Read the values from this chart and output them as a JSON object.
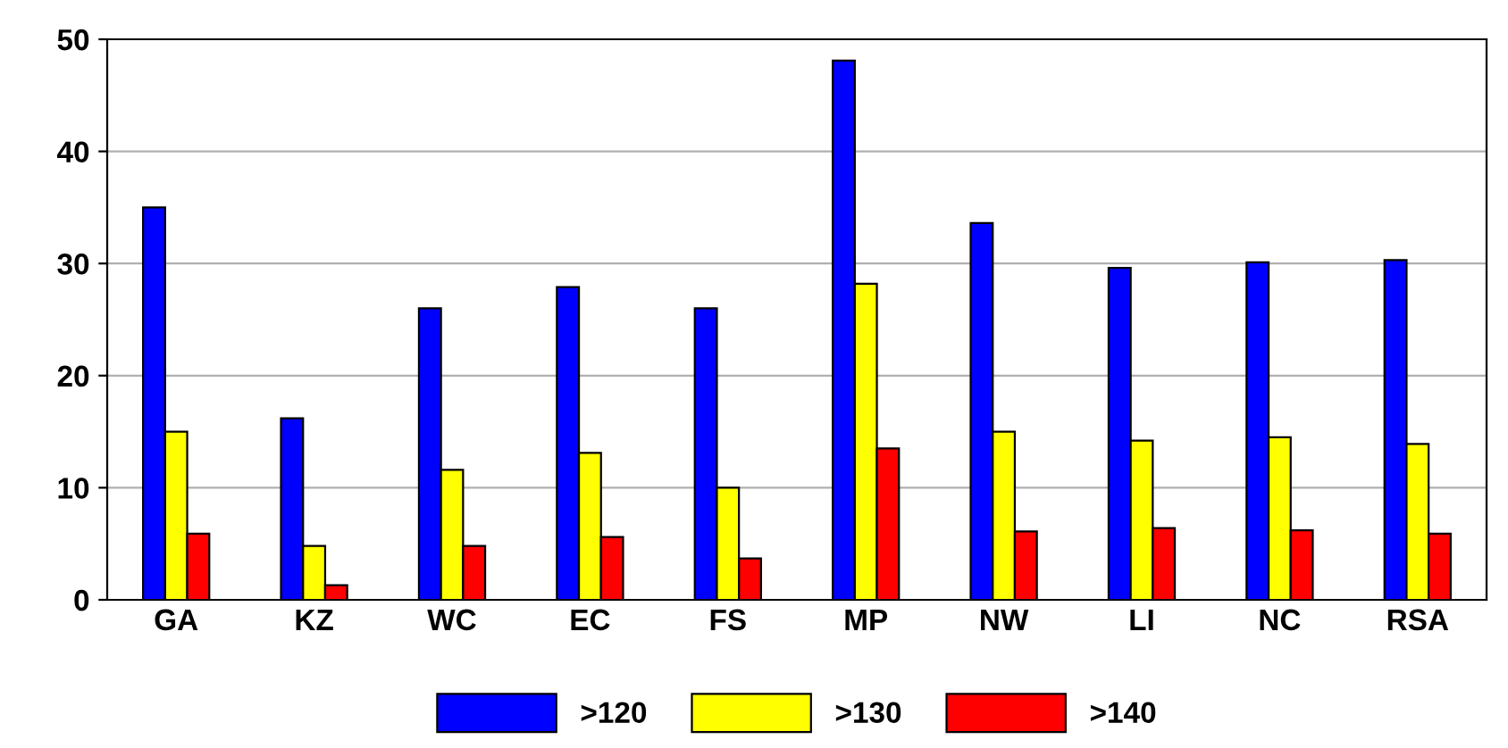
{
  "chart_data": {
    "type": "bar",
    "categories": [
      "GA",
      "KZ",
      "WC",
      "EC",
      "FS",
      "MP",
      "NW",
      "LI",
      "NC",
      "RSA"
    ],
    "series": [
      {
        "name": ">120",
        "color": "#0000ff",
        "values": [
          35,
          16.2,
          26,
          27.9,
          26,
          48.1,
          33.6,
          29.6,
          30.1,
          30.3
        ]
      },
      {
        "name": ">130",
        "color": "#ffff00",
        "values": [
          15,
          4.8,
          11.6,
          13.1,
          10,
          28.2,
          15,
          14.2,
          14.5,
          13.9
        ]
      },
      {
        "name": ">140",
        "color": "#ff0000",
        "values": [
          5.9,
          1.3,
          4.8,
          5.6,
          3.7,
          13.5,
          6.1,
          6.4,
          6.2,
          5.9
        ]
      }
    ],
    "ylim": [
      0,
      50
    ],
    "yticks": [
      0,
      10,
      20,
      30,
      40,
      50
    ],
    "grid": "y",
    "legend": "bottom"
  }
}
